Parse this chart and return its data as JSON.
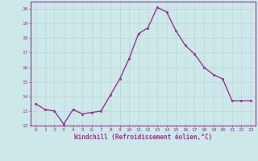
{
  "x": [
    0,
    1,
    2,
    3,
    4,
    5,
    6,
    7,
    8,
    9,
    10,
    11,
    12,
    13,
    14,
    15,
    16,
    17,
    18,
    19,
    20,
    21,
    22,
    23
  ],
  "y": [
    13.5,
    13.1,
    13.0,
    12.1,
    13.1,
    12.8,
    12.9,
    13.0,
    14.1,
    15.2,
    16.6,
    18.3,
    18.7,
    20.1,
    19.8,
    18.5,
    17.5,
    16.9,
    16.0,
    15.5,
    15.2,
    13.7,
    13.7,
    13.7
  ],
  "xlabel": "Windchill (Refroidissement éolien,°C)",
  "xlim": [
    -0.5,
    23.5
  ],
  "ylim": [
    12,
    20.5
  ],
  "yticks": [
    12,
    13,
    14,
    15,
    16,
    17,
    18,
    19,
    20
  ],
  "xticks": [
    0,
    1,
    2,
    3,
    4,
    5,
    6,
    7,
    8,
    9,
    10,
    11,
    12,
    13,
    14,
    15,
    16,
    17,
    18,
    19,
    20,
    21,
    22,
    23
  ],
  "line_color": "#993399",
  "marker_color": "#993399",
  "bg_color": "#cce8e8",
  "grid_color": "#c0d8d8",
  "axis_color": "#993399",
  "tick_label_color": "#993399",
  "xlabel_color": "#993399",
  "marker": "s",
  "marker_size": 1.8,
  "line_width": 1.0
}
